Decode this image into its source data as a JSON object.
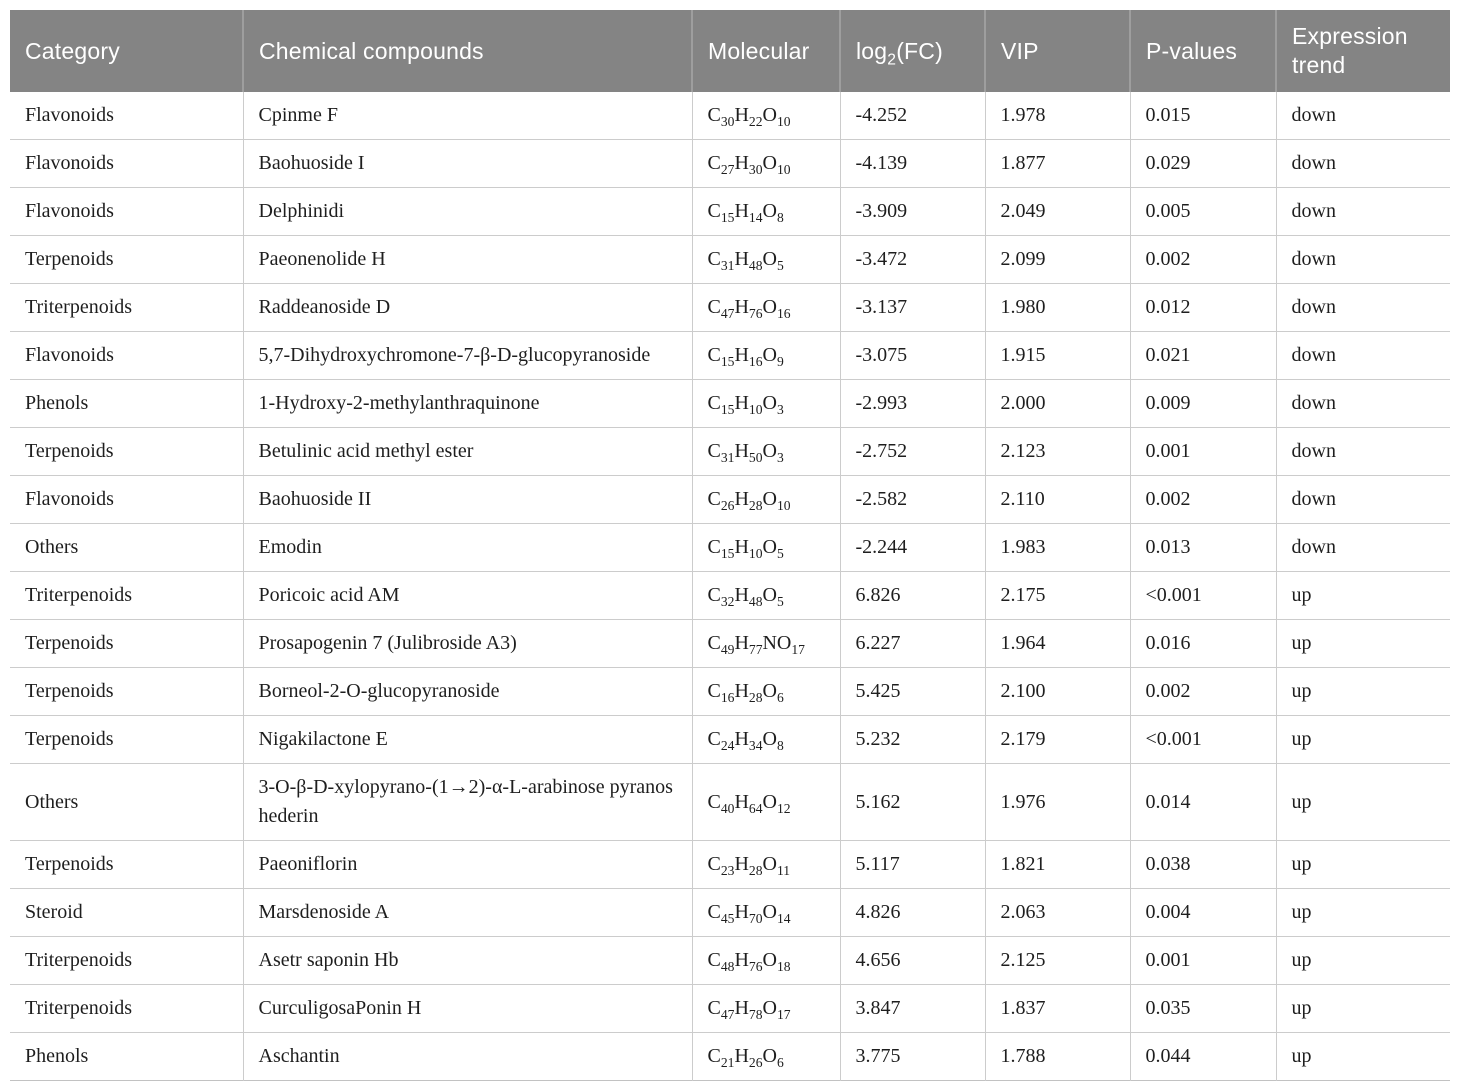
{
  "table": {
    "columns": {
      "category": "Category",
      "compound": "Chemical compounds",
      "molecular": "Molecular",
      "log2fc": {
        "pre": "log",
        "sub": "2",
        "post": "(FC)"
      },
      "vip": "VIP",
      "pvalues": "P-values",
      "trend": "Expression trend"
    },
    "rows": [
      {
        "category": "Flavonoids",
        "compound": "Cpinme F",
        "formula": "C30H22O10",
        "log2fc": "-4.252",
        "vip": "1.978",
        "pvalue": "0.015",
        "trend": "down"
      },
      {
        "category": "Flavonoids",
        "compound": "Baohuoside I",
        "formula": "C27H30O10",
        "log2fc": "-4.139",
        "vip": "1.877",
        "pvalue": "0.029",
        "trend": "down"
      },
      {
        "category": "Flavonoids",
        "compound": "Delphinidi",
        "formula": "C15H14O8",
        "log2fc": "-3.909",
        "vip": "2.049",
        "pvalue": "0.005",
        "trend": "down"
      },
      {
        "category": "Terpenoids",
        "compound": "Paeonenolide H",
        "formula": "C31H48O5",
        "log2fc": "-3.472",
        "vip": "2.099",
        "pvalue": "0.002",
        "trend": "down"
      },
      {
        "category": "Triterpenoids",
        "compound": "Raddeanoside D",
        "formula": "C47H76O16",
        "log2fc": "-3.137",
        "vip": "1.980",
        "pvalue": "0.012",
        "trend": "down"
      },
      {
        "category": "Flavonoids",
        "compound": "5,7-Dihydroxychromone-7-β-D-glucopyranoside",
        "formula": "C15H16O9",
        "log2fc": "-3.075",
        "vip": "1.915",
        "pvalue": "0.021",
        "trend": "down"
      },
      {
        "category": "Phenols",
        "compound": "1-Hydroxy-2-methylanthraquinone",
        "formula": "C15H10O3",
        "log2fc": "-2.993",
        "vip": "2.000",
        "pvalue": "0.009",
        "trend": "down"
      },
      {
        "category": "Terpenoids",
        "compound": "Betulinic acid methyl ester",
        "formula": "C31H50O3",
        "log2fc": "-2.752",
        "vip": "2.123",
        "pvalue": "0.001",
        "trend": "down"
      },
      {
        "category": "Flavonoids",
        "compound": "Baohuoside II",
        "formula": "C26H28O10",
        "log2fc": "-2.582",
        "vip": "2.110",
        "pvalue": "0.002",
        "trend": "down"
      },
      {
        "category": "Others",
        "compound": "Emodin",
        "formula": "C15H10O5",
        "log2fc": "-2.244",
        "vip": "1.983",
        "pvalue": "0.013",
        "trend": "down"
      },
      {
        "category": "Triterpenoids",
        "compound": "Poricoic acid AM",
        "formula": "C32H48O5",
        "log2fc": "6.826",
        "vip": "2.175",
        "pvalue": "<0.001",
        "trend": "up"
      },
      {
        "category": "Terpenoids",
        "compound": "Prosapogenin 7 (Julibroside A3)",
        "formula": "C49H77NO17",
        "log2fc": "6.227",
        "vip": "1.964",
        "pvalue": "0.016",
        "trend": "up"
      },
      {
        "category": "Terpenoids",
        "compound": "Borneol-2-O-glucopyranoside",
        "formula": "C16H28O6",
        "log2fc": "5.425",
        "vip": "2.100",
        "pvalue": "0.002",
        "trend": "up"
      },
      {
        "category": "Terpenoids",
        "compound": "Nigakilactone E",
        "formula": "C24H34O8",
        "log2fc": "5.232",
        "vip": "2.179",
        "pvalue": "<0.001",
        "trend": "up"
      },
      {
        "category": "Others",
        "compound": "3-O-β-D-xylopyrano-(1→2)-α-L-arabinose pyranos hederin",
        "formula": "C40H64O12",
        "log2fc": "5.162",
        "vip": "1.976",
        "pvalue": "0.014",
        "trend": "up"
      },
      {
        "category": "Terpenoids",
        "compound": "Paeoniflorin",
        "formula": "C23H28O11",
        "log2fc": "5.117",
        "vip": "1.821",
        "pvalue": "0.038",
        "trend": "up"
      },
      {
        "category": "Steroid",
        "compound": "Marsdenoside A",
        "formula": "C45H70O14",
        "log2fc": "4.826",
        "vip": "2.063",
        "pvalue": "0.004",
        "trend": "up"
      },
      {
        "category": "Triterpenoids",
        "compound": "Asetr saponin Hb",
        "formula": "C48H76O18",
        "log2fc": "4.656",
        "vip": "2.125",
        "pvalue": "0.001",
        "trend": "up"
      },
      {
        "category": "Triterpenoids",
        "compound": "CurculigosaPonin H",
        "formula": "C47H78O17",
        "log2fc": "3.847",
        "vip": "1.837",
        "pvalue": "0.035",
        "trend": "up"
      },
      {
        "category": "Phenols",
        "compound": "Aschantin",
        "formula": "C21H26O6",
        "log2fc": "3.775",
        "vip": "1.788",
        "pvalue": "0.044",
        "trend": "up"
      }
    ]
  },
  "colors": {
    "header_bg": "#848484",
    "header_text": "#ffffff",
    "grid_line": "#cccccc",
    "body_text": "#1e1e1e"
  }
}
